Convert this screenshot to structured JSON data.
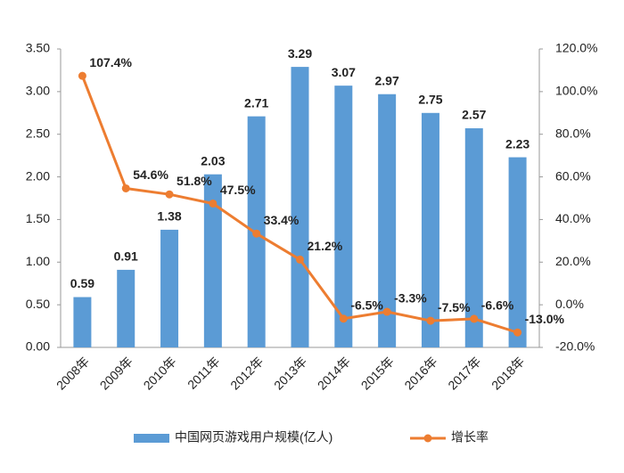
{
  "chart_data": {
    "type": "bar-line",
    "categories": [
      "2008年",
      "2009年",
      "2010年",
      "2011年",
      "2012年",
      "2013年",
      "2014年",
      "2015年",
      "2016年",
      "2017年",
      "2018年"
    ],
    "series": [
      {
        "name": "中国网页游戏用户规模(亿人)",
        "type": "bar",
        "color": "#5b9bd5",
        "values": [
          0.59,
          0.91,
          1.38,
          2.03,
          2.71,
          3.29,
          3.07,
          2.97,
          2.75,
          2.57,
          2.23
        ]
      },
      {
        "name": "增长率",
        "type": "line",
        "axis": "y2",
        "color": "#ed7d31",
        "values": [
          107.4,
          54.6,
          51.8,
          47.5,
          33.4,
          21.2,
          -6.5,
          -3.3,
          -7.5,
          -6.6,
          -13.0
        ],
        "value_labels": [
          "107.4%",
          "54.6%",
          "51.8%",
          "47.5%",
          "33.4%",
          "21.2%",
          "-6.5%",
          "-3.3%",
          "-7.5%",
          "-6.6%",
          "-13.0%"
        ]
      }
    ],
    "ylim": [
      0,
      3.5
    ],
    "yticks": [
      {
        "value": 0,
        "label": "0.00"
      },
      {
        "value": 0.5,
        "label": "0.50"
      },
      {
        "value": 1,
        "label": "1.00"
      },
      {
        "value": 1.5,
        "label": "1.50"
      },
      {
        "value": 2,
        "label": "2.00"
      },
      {
        "value": 2.5,
        "label": "2.50"
      },
      {
        "value": 3,
        "label": "3.00"
      },
      {
        "value": 3.5,
        "label": "3.50"
      }
    ],
    "y2lim": [
      -20,
      120
    ],
    "y2ticks": [
      {
        "value": -20,
        "label": "-20.0%"
      },
      {
        "value": 0,
        "label": "0.0%"
      },
      {
        "value": 20,
        "label": "20.0%"
      },
      {
        "value": 40,
        "label": "40.0%"
      },
      {
        "value": 60,
        "label": "60.0%"
      },
      {
        "value": 80,
        "label": "80.0%"
      },
      {
        "value": 100,
        "label": "100.0%"
      },
      {
        "value": 120,
        "label": "120.0%"
      }
    ]
  }
}
